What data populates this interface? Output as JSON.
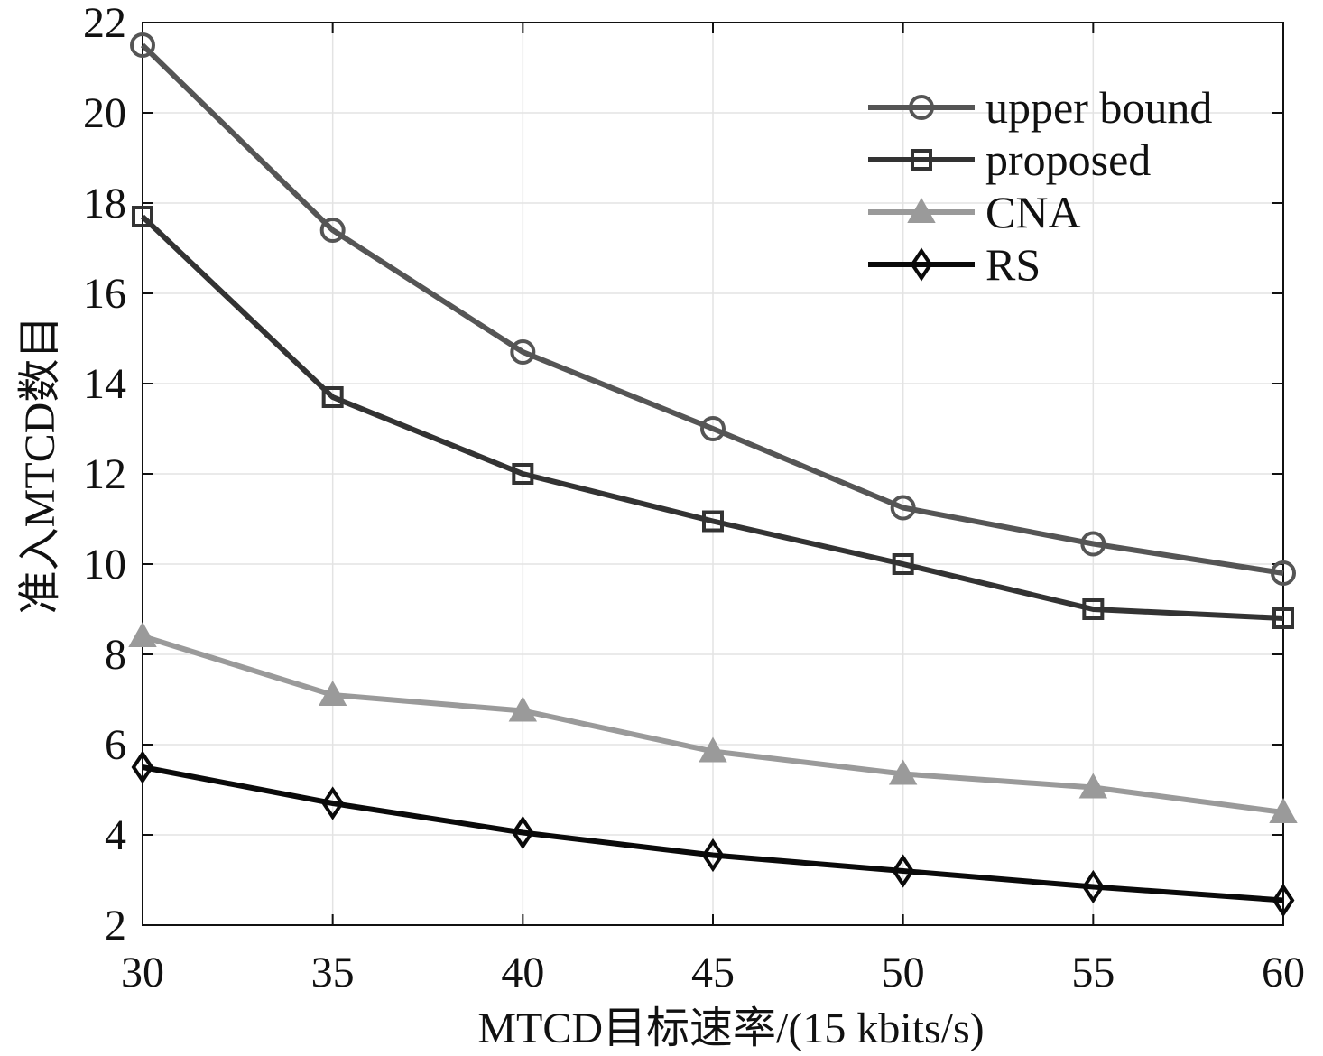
{
  "chart_data": {
    "type": "line",
    "title": "",
    "xlabel": "MTCD目标速率/(15 kbits/s)",
    "ylabel": "准入MTCD数目",
    "x": [
      30,
      35,
      40,
      45,
      50,
      55,
      60
    ],
    "xlim": [
      30,
      60
    ],
    "ylim": [
      2,
      22
    ],
    "xticks": [
      30,
      35,
      40,
      45,
      50,
      55,
      60
    ],
    "yticks": [
      2,
      4,
      6,
      8,
      10,
      12,
      14,
      16,
      18,
      20,
      22
    ],
    "grid": true,
    "legend_location": "top-right",
    "series": [
      {
        "name": "upper bound",
        "marker": "circle",
        "color": "#555555",
        "values": [
          21.5,
          17.4,
          14.7,
          13.0,
          11.25,
          10.45,
          9.8
        ]
      },
      {
        "name": "proposed",
        "marker": "square",
        "color": "#333333",
        "values": [
          17.7,
          13.7,
          12.0,
          10.95,
          10.0,
          9.0,
          8.8
        ]
      },
      {
        "name": "CNA",
        "marker": "triangle",
        "color": "#9a9a9a",
        "values": [
          8.4,
          7.1,
          6.75,
          5.85,
          5.35,
          5.05,
          4.5
        ]
      },
      {
        "name": "RS",
        "marker": "diamond",
        "color": "#0a0a0a",
        "values": [
          5.5,
          4.7,
          4.05,
          3.55,
          3.2,
          2.85,
          2.55
        ]
      }
    ]
  }
}
